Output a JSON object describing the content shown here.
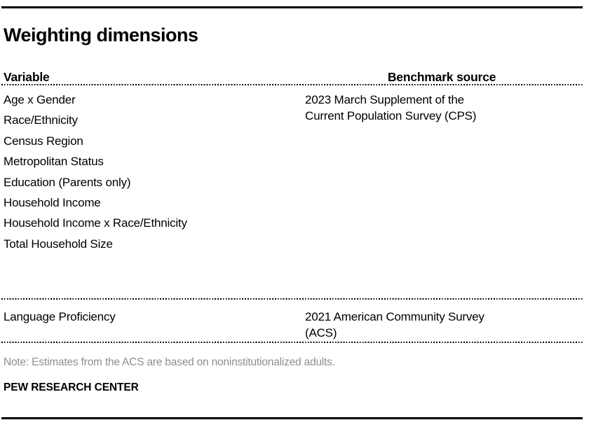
{
  "chart_data": {
    "type": "table",
    "title": "Weighting dimensions",
    "columns": [
      "Variable",
      "Benchmark source"
    ],
    "groups": [
      {
        "variables": [
          "Age x Gender",
          "Race/Ethnicity",
          "Census Region",
          "Metropolitan Status",
          "Education (Parents only)",
          "Household Income",
          "Household Income x Race/Ethnicity",
          "Total Household Size"
        ],
        "benchmark_source": "2023 March Supplement of the Current Population Survey (CPS)"
      },
      {
        "variables": [
          "Language Proficiency"
        ],
        "benchmark_source": "2021 American Community Survey (ACS)"
      }
    ],
    "note": "Note: Estimates from the ACS are based on noninstitutionalized adults.",
    "source": "PEW RESEARCH CENTER",
    "layout": "two-column table, Variable column left-aligned, Benchmark source header centered, grid off, dotted row-group separators, thick black top and bottom rules"
  },
  "colors": {
    "text": "#000000",
    "note_text": "#8f8f8f",
    "rules": "#000000",
    "background": "#ffffff"
  }
}
